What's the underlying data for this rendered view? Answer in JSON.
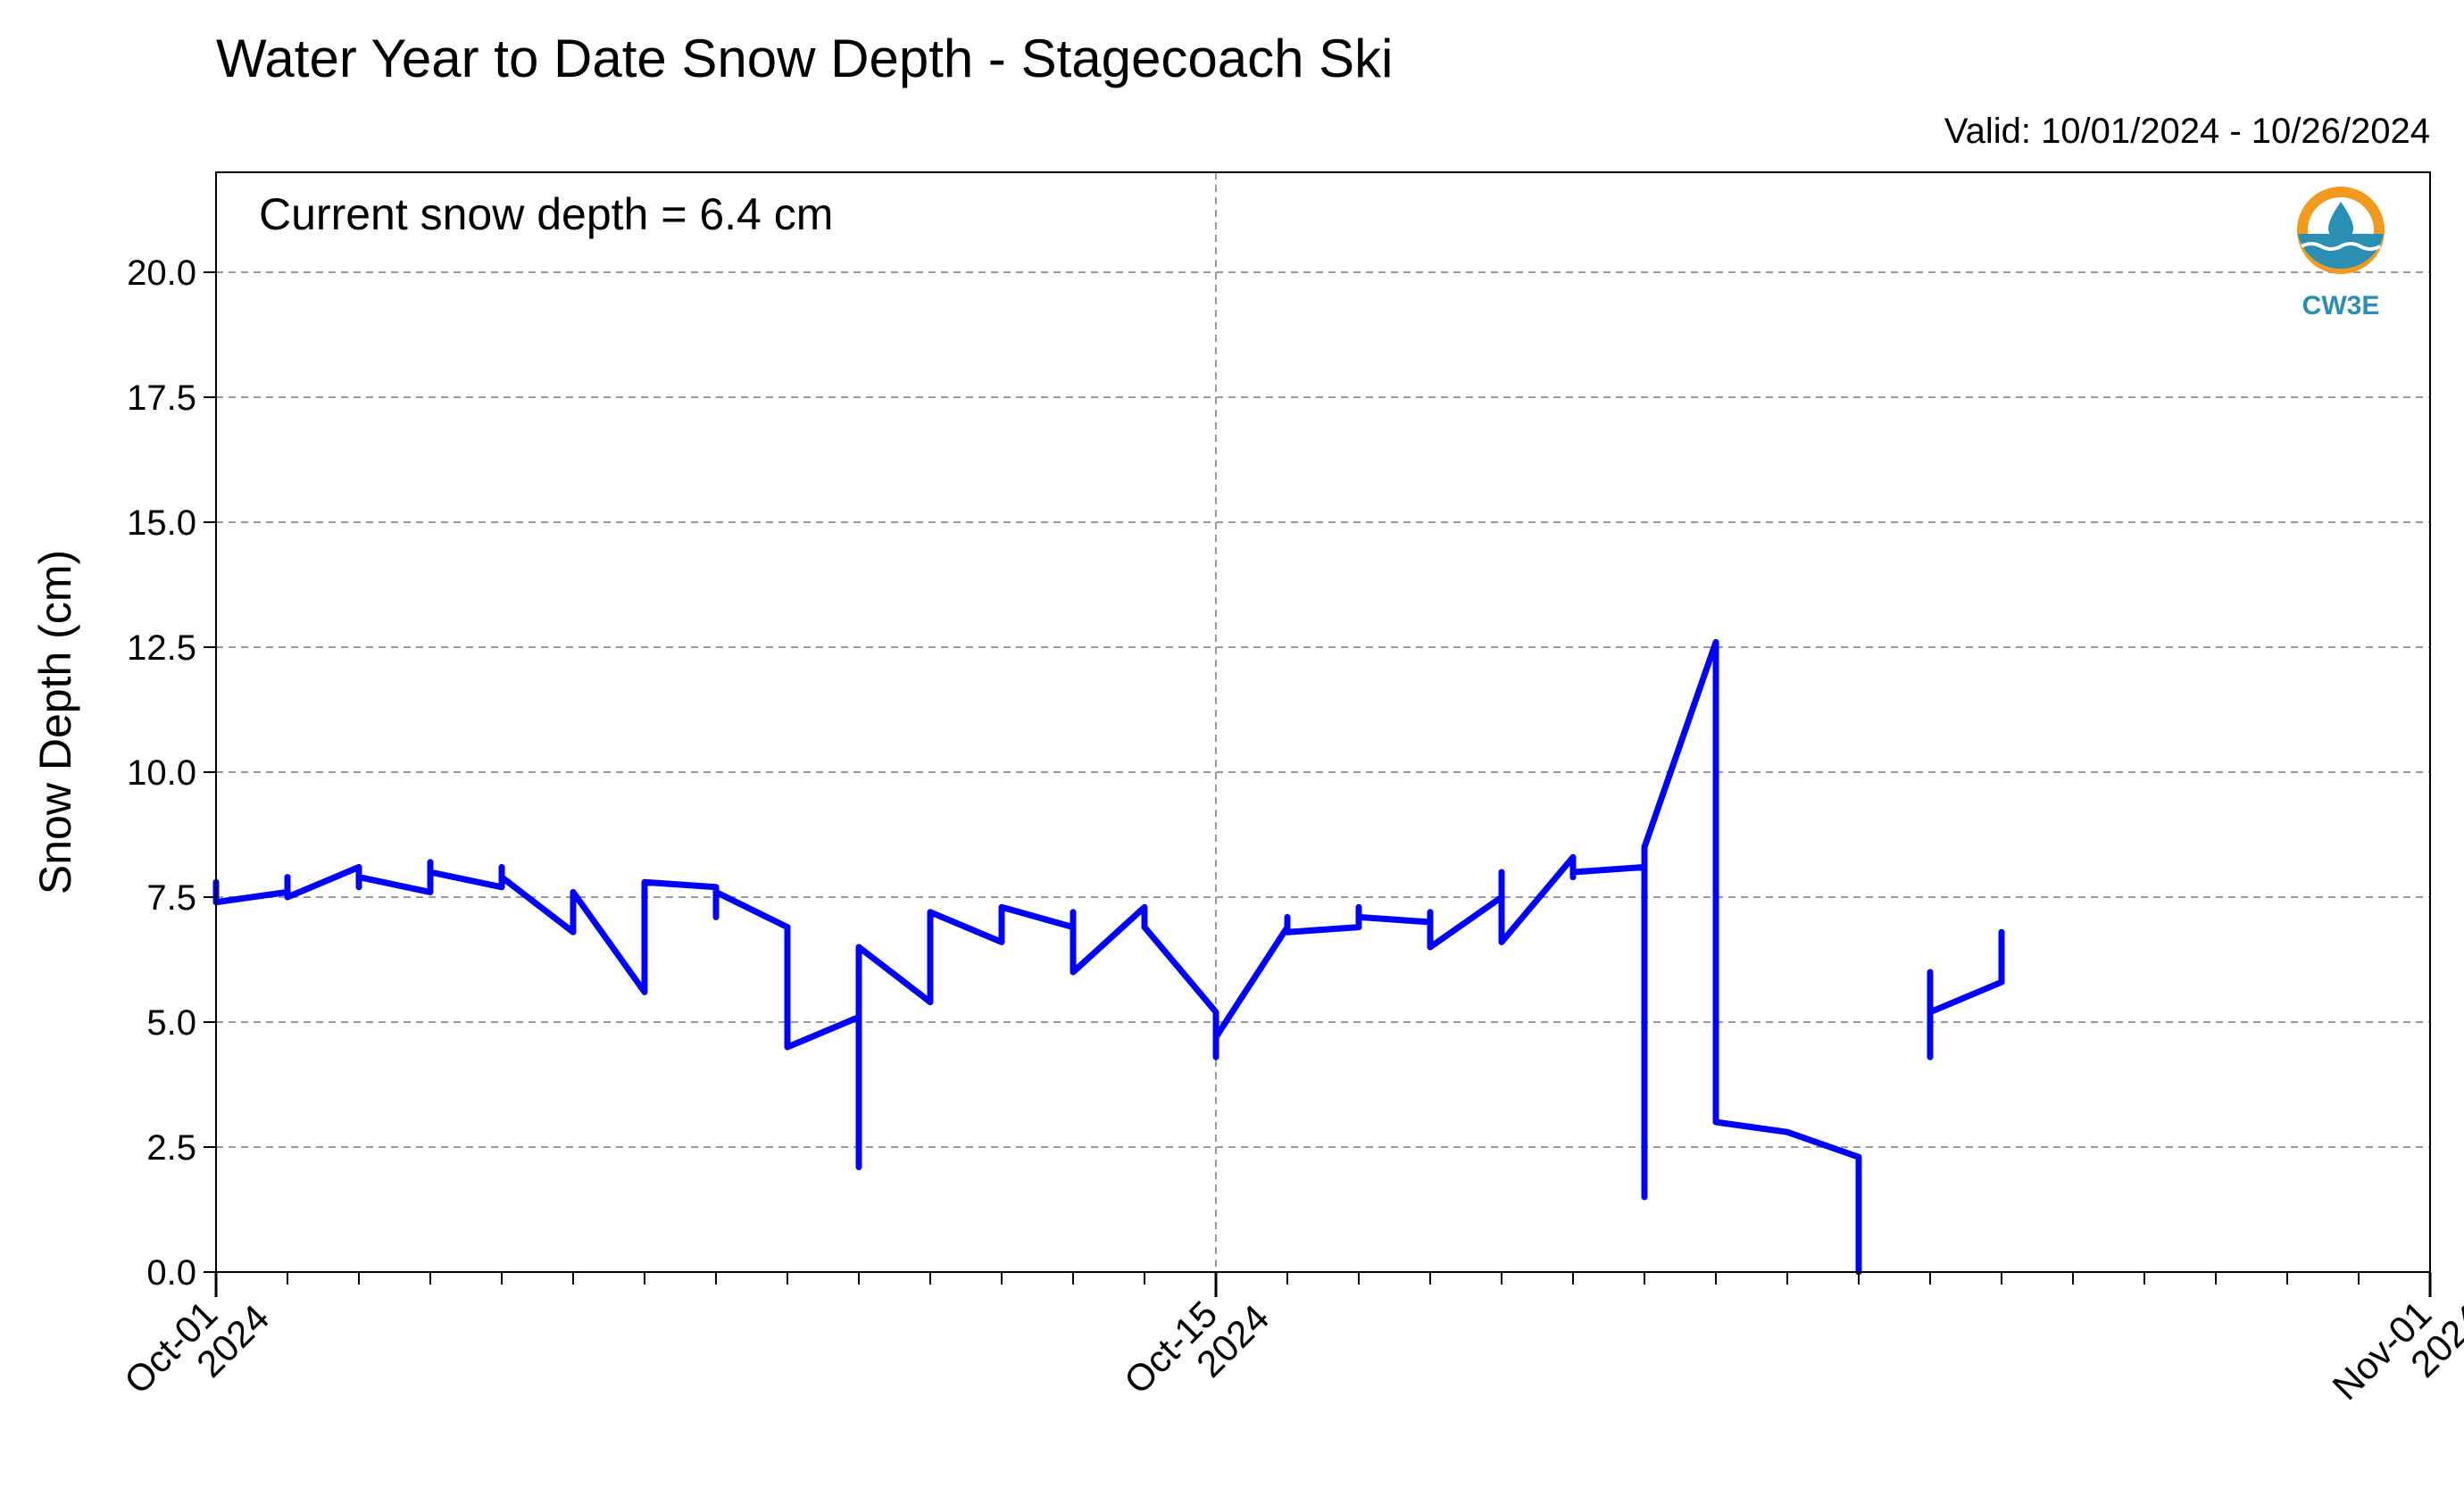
{
  "chart_data": {
    "type": "line",
    "title": "Water Year to Date Snow Depth - Stagecoach Ski",
    "subtitle": "Valid: 10/01/2024 - 10/26/2024",
    "annotation": "Current snow depth = 6.4 cm",
    "xlabel": "",
    "ylabel": "Snow Depth (cm)",
    "x_range": [
      "2024-10-01",
      "2024-11-01"
    ],
    "ylim": [
      0,
      22
    ],
    "y_ticks": [
      "0.0",
      "2.5",
      "5.0",
      "7.5",
      "10.0",
      "12.5",
      "15.0",
      "17.5",
      "20.0"
    ],
    "x_ticks": [
      {
        "date": "2024-10-01",
        "label_line1": "Oct-01",
        "label_line2": "2024"
      },
      {
        "date": "2024-10-15",
        "label_line1": "Oct-15",
        "label_line2": "2024"
      },
      {
        "date": "2024-11-01",
        "label_line1": "Nov-01",
        "label_line2": "2024"
      }
    ],
    "grid": true,
    "series_color": "#0000ff",
    "logo_text": "CW3E",
    "logo_colors": {
      "ring": "#f39a1e",
      "water": "#2a8fb3"
    },
    "series": [
      {
        "name": "",
        "x": [
          "2024-10-01",
          "2024-10-01",
          "2024-10-02",
          "2024-10-02",
          "2024-10-02",
          "2024-10-03",
          "2024-10-03",
          "2024-10-03",
          "2024-10-04",
          "2024-10-04",
          "2024-10-04",
          "2024-10-05",
          "2024-10-05",
          "2024-10-05",
          "2024-10-06",
          "2024-10-06",
          "2024-10-06",
          "2024-10-07",
          "2024-10-07",
          "2024-10-07",
          "2024-10-08",
          "2024-10-08",
          "2024-10-08",
          "2024-10-09",
          "2024-10-09",
          "2024-10-09",
          "2024-10-10",
          "2024-10-10",
          "2024-10-10",
          "2024-10-11",
          "2024-10-11",
          "2024-10-11",
          "2024-10-12",
          "2024-10-12",
          "2024-10-12",
          "2024-10-13",
          "2024-10-13",
          "2024-10-13",
          "2024-10-14",
          "2024-10-14",
          "2024-10-14",
          "2024-10-15",
          "2024-10-15",
          "2024-10-15",
          "2024-10-16",
          "2024-10-16",
          "2024-10-16",
          "2024-10-17",
          "2024-10-17",
          "2024-10-17",
          "2024-10-18",
          "2024-10-18",
          "2024-10-18",
          "2024-10-19",
          "2024-10-19",
          "2024-10-19",
          "2024-10-20",
          "2024-10-20",
          "2024-10-20",
          "2024-10-21",
          "2024-10-21",
          "2024-10-21",
          "2024-10-21",
          "2024-10-21",
          "2024-10-22",
          "2024-10-22",
          "2024-10-22",
          "2024-10-22",
          "2024-10-22",
          "2024-10-23",
          "2024-10-24",
          "2024-10-24",
          "2024-10-24",
          "2024-10-25",
          "2024-10-25",
          "2024-10-25",
          "2024-10-25",
          "2024-10-26",
          "2024-10-26",
          "2024-10-26"
        ],
        "y": [
          7.8,
          7.4,
          7.6,
          7.9,
          7.5,
          8.1,
          7.7,
          7.9,
          7.6,
          8.2,
          8.0,
          7.7,
          8.1,
          7.9,
          6.8,
          7.2,
          7.6,
          5.6,
          7.1,
          7.8,
          7.7,
          7.1,
          7.6,
          6.9,
          6.2,
          4.5,
          5.1,
          2.1,
          6.5,
          5.4,
          6.8,
          7.2,
          6.6,
          7.1,
          7.3,
          6.9,
          7.2,
          6.0,
          7.3,
          7.0,
          6.9,
          5.2,
          4.3,
          4.7,
          6.9,
          7.1,
          6.8,
          6.9,
          7.3,
          7.1,
          7.0,
          7.2,
          6.5,
          7.5,
          8.0,
          6.6,
          8.3,
          7.9,
          8.0,
          8.1,
          6.5,
          4.5,
          1.5,
          8.5,
          12.6,
          10.2,
          9.5,
          5.0,
          3.0,
          2.8,
          2.3,
          0.0,
          null,
          5.6,
          4.3,
          6.0,
          5.2,
          5.8,
          6.8,
          6.4
        ]
      }
    ]
  }
}
